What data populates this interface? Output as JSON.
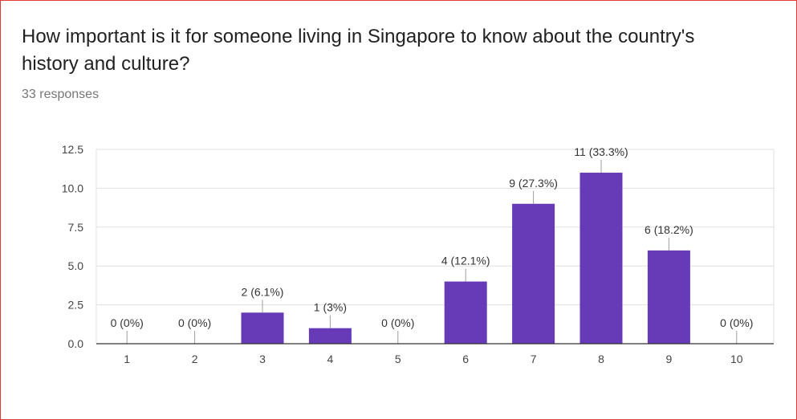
{
  "question": {
    "title": "How important is it for someone living in Singapore to know about the country's history and culture?",
    "responses": "33 responses"
  },
  "colors": {
    "bar": "#673ab7",
    "grid": "#e0e0e0",
    "axis": "#333333",
    "tick_text": "#444444",
    "label_text": "#333333",
    "frame": "#e53935"
  },
  "chart_data": {
    "type": "bar",
    "categories": [
      "1",
      "2",
      "3",
      "4",
      "5",
      "6",
      "7",
      "8",
      "9",
      "10"
    ],
    "values": [
      0,
      0,
      2,
      1,
      0,
      4,
      9,
      11,
      6,
      0
    ],
    "data_labels": [
      "0 (0%)",
      "0 (0%)",
      "2 (6.1%)",
      "1 (3%)",
      "0 (0%)",
      "4 (12.1%)",
      "9 (27.3%)",
      "11 (33.3%)",
      "6 (18.2%)",
      "0 (0%)"
    ],
    "yticks": [
      "0.0",
      "2.5",
      "5.0",
      "7.5",
      "10.0",
      "12.5"
    ],
    "ytick_values": [
      0,
      2.5,
      5,
      7.5,
      10,
      12.5
    ],
    "ylim": [
      0,
      12.5
    ],
    "grid": true,
    "legend": "none"
  }
}
